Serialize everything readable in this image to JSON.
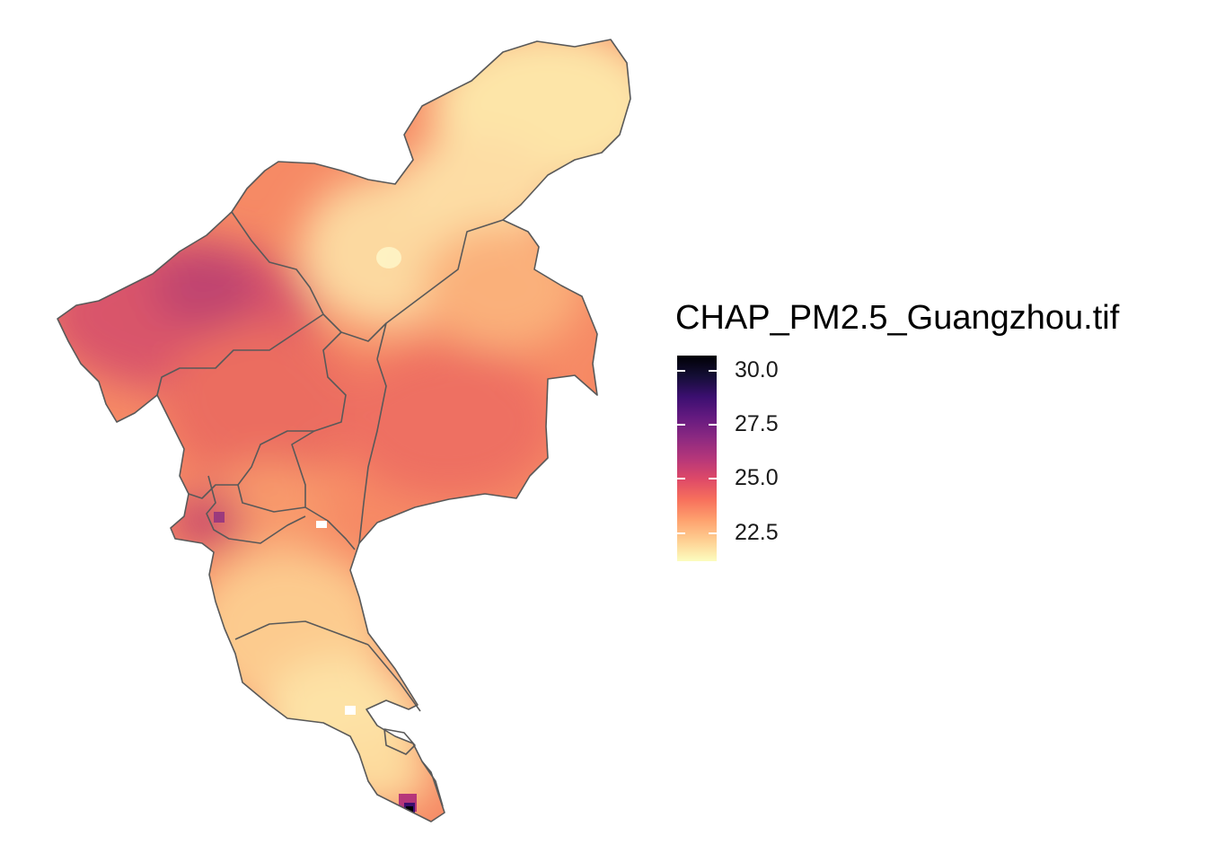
{
  "legend": {
    "title": "CHAP_PM2.5_Guangzhou.tif",
    "min": 21.2,
    "max": 30.7,
    "ticks": [
      {
        "label": "30.0",
        "value": 30.0
      },
      {
        "label": "27.5",
        "value": 27.5
      },
      {
        "label": "25.0",
        "value": 25.0
      },
      {
        "label": "22.5",
        "value": 22.5
      }
    ],
    "palette": [
      "#FCFDBF",
      "#FECF92",
      "#FEA16E",
      "#F7705C",
      "#DE4968",
      "#B5367A",
      "#8C2981",
      "#641A80",
      "#3B0F70",
      "#140E36",
      "#000004"
    ]
  },
  "map": {
    "border_color": "#595959",
    "background_color": "#FFFFFF"
  }
}
